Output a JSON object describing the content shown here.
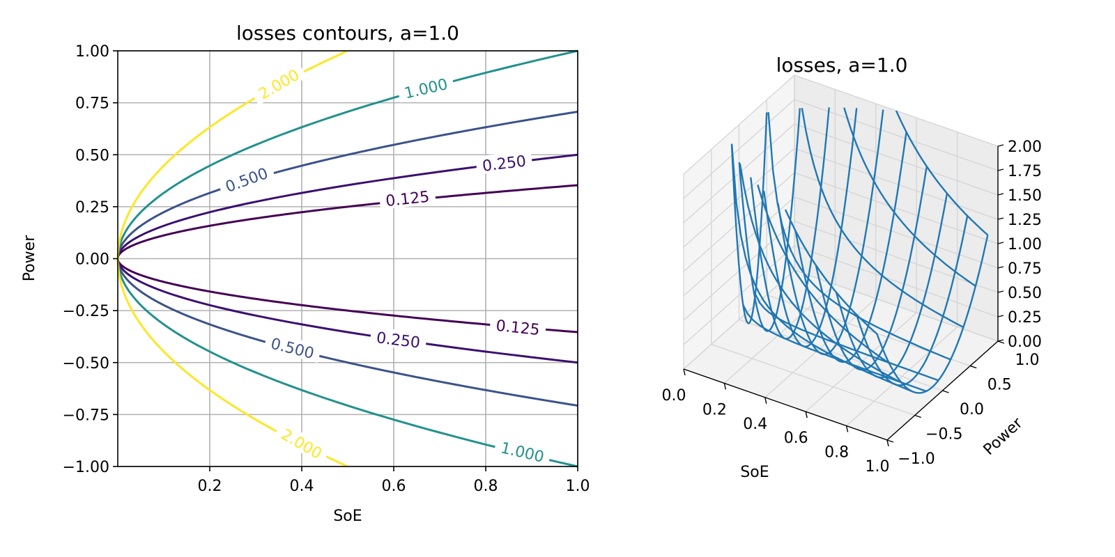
{
  "chart_data": [
    {
      "type": "contour",
      "title": "losses contours, a=1.0",
      "xlabel": "SoE",
      "ylabel": "Power",
      "xlim": [
        0.0,
        1.0
      ],
      "ylim": [
        -1.0,
        1.0
      ],
      "xticks": [
        0.2,
        0.4,
        0.6,
        0.8,
        1.0
      ],
      "xtick_labels": [
        "0.2",
        "0.4",
        "0.6",
        "0.8",
        "1.0"
      ],
      "yticks": [
        -1.0,
        -0.75,
        -0.5,
        -0.25,
        0.0,
        0.25,
        0.5,
        0.75,
        1.0
      ],
      "ytick_labels": [
        "−1.00",
        "−0.75",
        "−0.50",
        "−0.25",
        "0.00",
        "0.25",
        "0.50",
        "0.75",
        "1.00"
      ],
      "grid": true,
      "function": "losses = Power^2 / SoE",
      "levels": [
        {
          "value": 0.125,
          "label": "0.125",
          "color": "#440154"
        },
        {
          "value": 0.25,
          "label": "0.250",
          "color": "#3b0f70"
        },
        {
          "value": 0.5,
          "label": "0.500",
          "color": "#3b528b"
        },
        {
          "value": 1.0,
          "label": "1.000",
          "color": "#21918c"
        },
        {
          "value": 2.0,
          "label": "2.000",
          "color": "#fde725"
        }
      ],
      "contour_labels": [
        {
          "text": "2.000",
          "color": "#fde725",
          "x": 0.35,
          "y": 0.84,
          "rot": -30
        },
        {
          "text": "1.000",
          "color": "#21918c",
          "x": 0.67,
          "y": 0.82,
          "rot": -13
        },
        {
          "text": "0.500",
          "color": "#3b528b",
          "x": 0.28,
          "y": 0.38,
          "rot": -20
        },
        {
          "text": "0.250",
          "color": "#3b0f70",
          "x": 0.84,
          "y": 0.46,
          "rot": -7
        },
        {
          "text": "0.125",
          "color": "#440154",
          "x": 0.63,
          "y": 0.29,
          "rot": -6
        },
        {
          "text": "0.125",
          "color": "#440154",
          "x": 0.87,
          "y": -0.33,
          "rot": 6
        },
        {
          "text": "0.250",
          "color": "#3b0f70",
          "x": 0.61,
          "y": -0.39,
          "rot": 7
        },
        {
          "text": "0.500",
          "color": "#3b528b",
          "x": 0.38,
          "y": -0.43,
          "rot": 14
        },
        {
          "text": "2.000",
          "color": "#fde725",
          "x": 0.4,
          "y": -0.89,
          "rot": 30
        },
        {
          "text": "1.000",
          "color": "#21918c",
          "x": 0.88,
          "y": -0.93,
          "rot": 13
        }
      ]
    },
    {
      "type": "wireframe-3d",
      "title": "losses, a=1.0",
      "xlabel": "SoE",
      "ylabel": "Power",
      "zlabel": "",
      "xlim": [
        0.0,
        1.0
      ],
      "ylim": [
        -1.0,
        1.0
      ],
      "zlim": [
        0.0,
        2.0
      ],
      "xticks": [
        "0.0",
        "0.2",
        "0.4",
        "0.6",
        "0.8",
        "1.0"
      ],
      "yticks": [
        "−1.0",
        "−0.5",
        "0.0",
        "0.5",
        "1.0"
      ],
      "zticks": [
        "0.00",
        "0.25",
        "0.50",
        "0.75",
        "1.00",
        "1.25",
        "1.50",
        "1.75",
        "2.00"
      ],
      "function": "losses = Power^2 / SoE",
      "line_color": "#1f77b4"
    }
  ]
}
